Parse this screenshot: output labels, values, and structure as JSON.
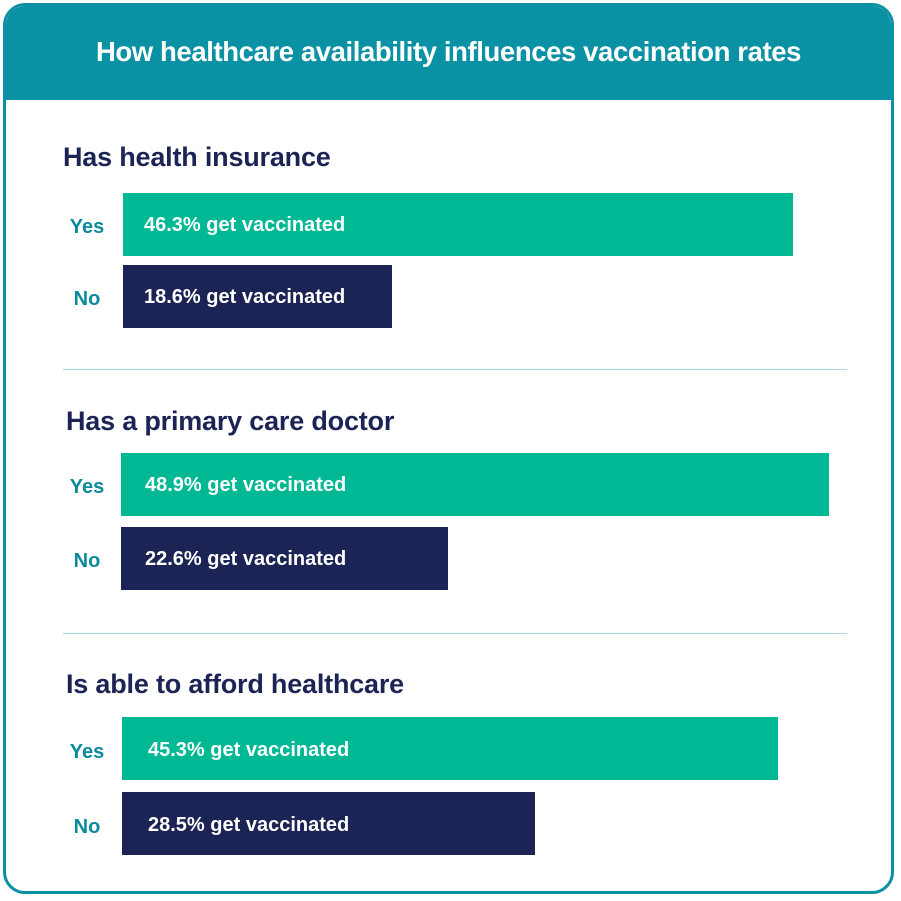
{
  "chart_data": {
    "type": "bar",
    "orientation": "horizontal",
    "title": "How healthcare availability influences vaccination rates",
    "unit": "%",
    "groups": [
      {
        "title": "Has health insurance",
        "rows": [
          {
            "label": "Yes",
            "value": 46.3,
            "text": "46.3% get vaccinated"
          },
          {
            "label": "No",
            "value": 18.6,
            "text": "18.6% get vaccinated"
          }
        ]
      },
      {
        "title": "Has a primary care doctor",
        "rows": [
          {
            "label": "Yes",
            "value": 48.9,
            "text": "48.9% get vaccinated"
          },
          {
            "label": "No",
            "value": 22.6,
            "text": "22.6% get vaccinated"
          }
        ]
      },
      {
        "title": "Is able to afford healthcare",
        "rows": [
          {
            "label": "Yes",
            "value": 45.3,
            "text": "45.3% get vaccinated"
          },
          {
            "label": "No",
            "value": 28.5,
            "text": "28.5% get vaccinated"
          }
        ]
      }
    ],
    "colors": {
      "yes": "#00b894",
      "no": "#1b2454",
      "header": "#0a91a3",
      "accent_text": "#0a8a9c"
    }
  }
}
